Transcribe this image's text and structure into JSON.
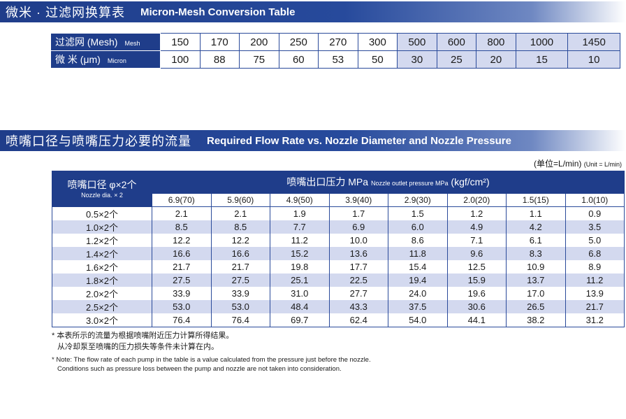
{
  "section1": {
    "title_zh": "微米 · 过滤网换算表",
    "title_en": "Micron-Mesh Conversion Table"
  },
  "mesh_table": {
    "row1_label": "过滤网 (Mesh)",
    "row1_sub": "Mesh",
    "row2_label": "微 米 (μm)",
    "row2_sub": "Micron",
    "mesh": [
      "150",
      "170",
      "200",
      "250",
      "270",
      "300",
      "500",
      "600",
      "800",
      "1000",
      "1450"
    ],
    "micron": [
      "100",
      "88",
      "75",
      "60",
      "53",
      "50",
      "30",
      "25",
      "20",
      "15",
      "10"
    ],
    "shade_from_index": 6
  },
  "section2": {
    "title_zh": "喷嘴口径与喷嘴压力必要的流量",
    "title_en": "Required Flow Rate vs. Nozzle Diameter and Nozzle Pressure",
    "unit_zh": "(单位=L/min)",
    "unit_en": "(Unit = L/min)"
  },
  "flow_table": {
    "corner_zh": "喷嘴口径 φ×2个",
    "corner_en": "Nozzle dia. × 2",
    "pressure_zh": "喷嘴出口压力 MPa",
    "pressure_en": "Nozzle outlet pressure MPa",
    "pressure_unit": "(kgf/cm²)",
    "pressures": [
      "6.9(70)",
      "5.9(60)",
      "4.9(50)",
      "3.9(40)",
      "2.9(30)",
      "2.0(20)",
      "1.5(15)",
      "1.0(10)"
    ],
    "rows": [
      {
        "label": "0.5×2个",
        "values": [
          "2.1",
          "2.1",
          "1.9",
          "1.7",
          "1.5",
          "1.2",
          "1.1",
          "0.9"
        ]
      },
      {
        "label": "1.0×2个",
        "values": [
          "8.5",
          "8.5",
          "7.7",
          "6.9",
          "6.0",
          "4.9",
          "4.2",
          "3.5"
        ]
      },
      {
        "label": "1.2×2个",
        "values": [
          "12.2",
          "12.2",
          "11.2",
          "10.0",
          "8.6",
          "7.1",
          "6.1",
          "5.0"
        ]
      },
      {
        "label": "1.4×2个",
        "values": [
          "16.6",
          "16.6",
          "15.2",
          "13.6",
          "11.8",
          "9.6",
          "8.3",
          "6.8"
        ]
      },
      {
        "label": "1.6×2个",
        "values": [
          "21.7",
          "21.7",
          "19.8",
          "17.7",
          "15.4",
          "12.5",
          "10.9",
          "8.9"
        ]
      },
      {
        "label": "1.8×2个",
        "values": [
          "27.5",
          "27.5",
          "25.1",
          "22.5",
          "19.4",
          "15.9",
          "13.7",
          "11.2"
        ]
      },
      {
        "label": "2.0×2个",
        "values": [
          "33.9",
          "33.9",
          "31.0",
          "27.7",
          "24.0",
          "19.6",
          "17.0",
          "13.9"
        ]
      },
      {
        "label": "2.5×2个",
        "values": [
          "53.0",
          "53.0",
          "48.4",
          "43.3",
          "37.5",
          "30.6",
          "26.5",
          "21.7"
        ]
      },
      {
        "label": "3.0×2个",
        "values": [
          "76.4",
          "76.4",
          "69.7",
          "62.4",
          "54.0",
          "44.1",
          "38.2",
          "31.2"
        ]
      }
    ]
  },
  "notes": {
    "zh_line1": "* 本表所示的流量为根据喷嘴附近压力计算所得结果。",
    "zh_line2": "从冷却泵至喷嘴的压力损失等条件未计算在内。",
    "en_line1": "* Note: The flow rate of each pump in the table is a value calculated from the pressure just before the nozzle.",
    "en_line2": "Conditions such as pressure loss between the pump and nozzle are not taken into consideration."
  },
  "colors": {
    "header_blue": "#1f3d8a",
    "row_shade": "#d3d9ef"
  }
}
